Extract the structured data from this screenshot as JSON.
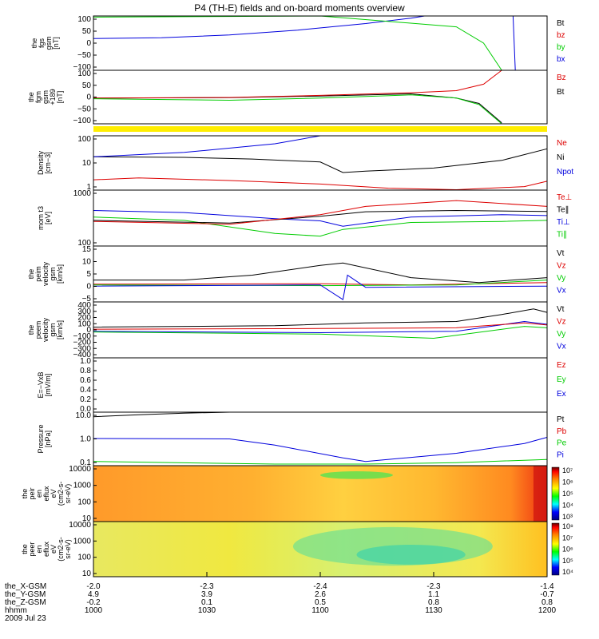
{
  "title": "P4 (TH-E) fields and on-board moments overview",
  "time": {
    "date_label": "2009 Jul 23",
    "row_labels": [
      "the_X-GSM",
      "the_Y-GSM",
      "the_Z-GSM",
      "hhmm"
    ],
    "ticks": [
      {
        "hhmm": "1000",
        "x": "-2.0",
        "y": "4.9",
        "z": "-0.2"
      },
      {
        "hhmm": "1030",
        "x": "-2.3",
        "y": "3.9",
        "z": "0.1"
      },
      {
        "hhmm": "1100",
        "x": "-2.4",
        "y": "2.6",
        "z": "0.5"
      },
      {
        "hhmm": "1130",
        "x": "-2.3",
        "y": "1.1",
        "z": "0.8"
      },
      {
        "hhmm": "1200",
        "x": "-1.4",
        "y": "-0.7",
        "z": "0.8"
      }
    ]
  },
  "colors": {
    "black": "#000000",
    "red": "#dd0000",
    "green": "#00cc00",
    "blue": "#0000dd",
    "flag": "#ffee00"
  },
  "chart_data": [
    {
      "type": "line",
      "id": "fgs",
      "ylabel": [
        "the",
        "fgs",
        "gsm",
        "[nT]"
      ],
      "yticks": [
        "100",
        "50",
        "0",
        "−50",
        "−100"
      ],
      "ylim": [
        -100,
        100
      ],
      "legend": [
        {
          "name": "Bt",
          "color": "black"
        },
        {
          "name": "bz",
          "color": "red"
        },
        {
          "name": "by",
          "color": "green"
        },
        {
          "name": "bx",
          "color": "blue"
        }
      ],
      "series": [
        {
          "name": "bx",
          "color": "blue",
          "points": [
            [
              0,
              17
            ],
            [
              0.15,
              20
            ],
            [
              0.3,
              30
            ],
            [
              0.45,
              48
            ],
            [
              0.6,
              72
            ],
            [
              0.7,
              92
            ],
            [
              0.73,
              100
            ]
          ]
        },
        {
          "name": "by",
          "color": "green",
          "points": [
            [
              0,
              96
            ],
            [
              0.5,
              100
            ],
            [
              0.8,
              60
            ],
            [
              0.86,
              0
            ],
            [
              0.9,
              -100
            ]
          ]
        },
        {
          "name": "bx-late",
          "color": "blue",
          "points": [
            [
              0.925,
              100
            ],
            [
              0.93,
              -100
            ]
          ]
        }
      ]
    },
    {
      "type": "line",
      "id": "fgm",
      "ylabel": [
        "the",
        "fgm",
        "gsm",
        "+189",
        "[nT]"
      ],
      "yticks": [
        "100",
        "50",
        "0",
        "−50",
        "−100"
      ],
      "ylim": [
        -125,
        125
      ],
      "legend": [
        {
          "name": "Bz",
          "color": "red"
        },
        {
          "name": "Bt",
          "color": "black"
        }
      ],
      "series": [
        {
          "name": "black",
          "color": "black",
          "points": [
            [
              0,
              -5
            ],
            [
              0.3,
              -3
            ],
            [
              0.5,
              5
            ],
            [
              0.7,
              15
            ],
            [
              0.8,
              -5
            ],
            [
              0.85,
              -30
            ],
            [
              0.9,
              -120
            ]
          ]
        },
        {
          "name": "red",
          "color": "red",
          "points": [
            [
              0,
              -5
            ],
            [
              0.3,
              -2
            ],
            [
              0.5,
              8
            ],
            [
              0.7,
              20
            ],
            [
              0.8,
              30
            ],
            [
              0.86,
              60
            ],
            [
              0.9,
              125
            ]
          ]
        },
        {
          "name": "green",
          "color": "green",
          "points": [
            [
              0,
              -8
            ],
            [
              0.3,
              -15
            ],
            [
              0.5,
              -5
            ],
            [
              0.7,
              10
            ],
            [
              0.8,
              -5
            ],
            [
              0.85,
              -35
            ],
            [
              0.9,
              -125
            ]
          ]
        }
      ]
    },
    {
      "type": "line",
      "id": "density",
      "scale": "log",
      "ylabel": [
        "Density",
        "[cm−3]"
      ],
      "yticks": [
        "100",
        "10",
        "1"
      ],
      "ylim": [
        0.4,
        200
      ],
      "legend": [
        {
          "name": "Ne",
          "color": "red"
        },
        {
          "name": "Ni",
          "color": "black"
        },
        {
          "name": "Npot",
          "color": "blue"
        }
      ],
      "series": [
        {
          "name": "Ni",
          "color": "black",
          "points": [
            [
              0,
              18
            ],
            [
              0.2,
              17
            ],
            [
              0.35,
              14
            ],
            [
              0.5,
              10
            ],
            [
              0.55,
              3
            ],
            [
              0.6,
              3.5
            ],
            [
              0.75,
              5
            ],
            [
              0.9,
              12
            ],
            [
              1,
              45
            ]
          ]
        },
        {
          "name": "Ne",
          "color": "red",
          "points": [
            [
              0,
              1.3
            ],
            [
              0.1,
              1.6
            ],
            [
              0.3,
              1.2
            ],
            [
              0.5,
              0.8
            ],
            [
              0.65,
              0.5
            ],
            [
              0.8,
              0.42
            ],
            [
              0.95,
              0.6
            ],
            [
              1,
              1.1
            ]
          ]
        },
        {
          "name": "Npot",
          "color": "blue",
          "points": [
            [
              0,
              18
            ],
            [
              0.2,
              30
            ],
            [
              0.4,
              80
            ],
            [
              0.5,
              200
            ]
          ]
        }
      ]
    },
    {
      "type": "line",
      "id": "mom_t",
      "scale": "log",
      "ylabel": [
        "mom t3",
        "[eV]"
      ],
      "yticks": [
        "1000",
        "100"
      ],
      "ylim": [
        50,
        2500
      ],
      "legend": [
        {
          "name": "Te⊥",
          "color": "red"
        },
        {
          "name": "Te∥",
          "color": "black"
        },
        {
          "name": "Ti⊥",
          "color": "blue"
        },
        {
          "name": "Ti∥",
          "color": "green"
        }
      ],
      "series": [
        {
          "name": "Ti⊥",
          "color": "blue",
          "points": [
            [
              0,
              600
            ],
            [
              0.2,
              520
            ],
            [
              0.4,
              340
            ],
            [
              0.5,
              290
            ],
            [
              0.55,
              200
            ],
            [
              0.7,
              380
            ],
            [
              0.9,
              450
            ],
            [
              1,
              420
            ]
          ]
        },
        {
          "name": "Ti∥",
          "color": "green",
          "points": [
            [
              0,
              380
            ],
            [
              0.2,
              300
            ],
            [
              0.4,
              120
            ],
            [
              0.5,
              100
            ],
            [
              0.55,
              160
            ],
            [
              0.7,
              260
            ],
            [
              0.9,
              280
            ],
            [
              1,
              300
            ]
          ]
        },
        {
          "name": "Te∥",
          "color": "black",
          "points": [
            [
              0,
              300
            ],
            [
              0.3,
              250
            ],
            [
              0.5,
              400
            ],
            [
              0.6,
              550
            ],
            [
              0.8,
              600
            ],
            [
              1,
              560
            ]
          ]
        },
        {
          "name": "Te⊥",
          "color": "red",
          "points": [
            [
              0,
              280
            ],
            [
              0.3,
              230
            ],
            [
              0.5,
              450
            ],
            [
              0.6,
              800
            ],
            [
              0.8,
              1200
            ],
            [
              1,
              800
            ]
          ]
        }
      ]
    },
    {
      "type": "line",
      "id": "peim_v",
      "ylabel": [
        "the",
        "peim",
        "velocity",
        "gsm",
        "[km/s]"
      ],
      "yticks": [
        "15",
        "10",
        "5",
        "0",
        "−5"
      ],
      "ylim": [
        -7,
        16
      ],
      "legend": [
        {
          "name": "Vt",
          "color": "black"
        },
        {
          "name": "Vz",
          "color": "red"
        },
        {
          "name": "Vy",
          "color": "green"
        },
        {
          "name": "Vx",
          "color": "blue"
        }
      ],
      "series": [
        {
          "name": "Vt",
          "color": "black",
          "points": [
            [
              0,
              2
            ],
            [
              0.2,
              2
            ],
            [
              0.35,
              4
            ],
            [
              0.5,
              8
            ],
            [
              0.55,
              9
            ],
            [
              0.7,
              3
            ],
            [
              0.85,
              1
            ],
            [
              1,
              3
            ]
          ]
        },
        {
          "name": "Vz",
          "color": "red",
          "points": [
            [
              0,
              0.3
            ],
            [
              0.5,
              0.5
            ],
            [
              0.7,
              0
            ],
            [
              1,
              1
            ]
          ]
        },
        {
          "name": "Vy",
          "color": "green",
          "points": [
            [
              0,
              0
            ],
            [
              0.5,
              -0.3
            ],
            [
              0.8,
              0
            ],
            [
              1,
              2
            ]
          ]
        },
        {
          "name": "Vx",
          "color": "blue",
          "points": [
            [
              0,
              -0.5
            ],
            [
              0.5,
              0
            ],
            [
              0.55,
              -6
            ],
            [
              0.56,
              4
            ],
            [
              0.6,
              -1
            ],
            [
              1,
              -0.5
            ]
          ]
        }
      ]
    },
    {
      "type": "line",
      "id": "peem_v",
      "ylabel": [
        "the",
        "peem",
        "velocity",
        "gsm",
        "[km/s]"
      ],
      "yticks": [
        "400",
        "300",
        "200",
        "100",
        "0",
        "−100",
        "−200",
        "−300",
        "−400"
      ],
      "ylim": [
        -400,
        400
      ],
      "legend": [
        {
          "name": "Vt",
          "color": "black"
        },
        {
          "name": "Vz",
          "color": "red"
        },
        {
          "name": "Vy",
          "color": "green"
        },
        {
          "name": "Vx",
          "color": "blue"
        }
      ],
      "series": [
        {
          "name": "Vx",
          "color": "blue",
          "points": [
            [
              0,
              -20
            ],
            [
              0.5,
              -40
            ],
            [
              0.8,
              -20
            ],
            [
              0.95,
              120
            ],
            [
              1,
              80
            ]
          ]
        },
        {
          "name": "Vy",
          "color": "green",
          "points": [
            [
              0,
              -30
            ],
            [
              0.5,
              -60
            ],
            [
              0.75,
              -120
            ],
            [
              0.95,
              50
            ],
            [
              1,
              30
            ]
          ]
        },
        {
          "name": "Vz",
          "color": "red",
          "points": [
            [
              0,
              10
            ],
            [
              0.5,
              20
            ],
            [
              0.8,
              30
            ],
            [
              0.95,
              100
            ],
            [
              1,
              70
            ]
          ]
        },
        {
          "name": "Vt",
          "color": "black",
          "points": [
            [
              0,
              40
            ],
            [
              0.4,
              60
            ],
            [
              0.6,
              100
            ],
            [
              0.8,
              120
            ],
            [
              0.9,
              220
            ],
            [
              0.97,
              300
            ],
            [
              1,
              250
            ]
          ]
        }
      ]
    },
    {
      "type": "line",
      "id": "efield",
      "ylabel": [
        "E=−VxB",
        "[mV/m]"
      ],
      "yticks": [
        "1.0",
        "0.8",
        "0.6",
        "0.4",
        "0.2",
        "0.0"
      ],
      "ylim": [
        0,
        1
      ],
      "legend": [
        {
          "name": "Ez",
          "color": "red"
        },
        {
          "name": "Ey",
          "color": "green"
        },
        {
          "name": "Ex",
          "color": "blue"
        }
      ],
      "series": []
    },
    {
      "type": "line",
      "id": "pressure",
      "scale": "log",
      "ylabel": [
        "Pressure",
        "[nPa]"
      ],
      "yticks": [
        "10.0",
        "1.0",
        "0.1"
      ],
      "ylim": [
        0.05,
        20
      ],
      "legend": [
        {
          "name": "Pt",
          "color": "black"
        },
        {
          "name": "Pb",
          "color": "red"
        },
        {
          "name": "Pe",
          "color": "green"
        },
        {
          "name": "Pi",
          "color": "blue"
        }
      ],
      "series": [
        {
          "name": "Pt",
          "color": "black",
          "points": [
            [
              0,
              12
            ],
            [
              0.1,
              15
            ],
            [
              0.2,
              18
            ],
            [
              0.3,
              21
            ]
          ]
        },
        {
          "name": "Pi",
          "color": "blue",
          "points": [
            [
              0,
              1.05
            ],
            [
              0.3,
              1.0
            ],
            [
              0.4,
              0.5
            ],
            [
              0.55,
              0.12
            ],
            [
              0.6,
              0.08
            ],
            [
              0.8,
              0.2
            ],
            [
              0.95,
              0.6
            ],
            [
              1,
              1.2
            ]
          ]
        },
        {
          "name": "Pe",
          "color": "green",
          "points": [
            [
              0,
              0.08
            ],
            [
              0.4,
              0.06
            ],
            [
              0.6,
              0.06
            ],
            [
              0.8,
              0.07
            ],
            [
              1,
              0.1
            ]
          ]
        }
      ]
    },
    {
      "type": "heatmap",
      "id": "peir",
      "ylabel": [
        "the",
        "peir",
        "en",
        "eflux",
        "eV",
        "(cm2-s-",
        "sr-eV)"
      ],
      "yticks": [
        "10000",
        "1000",
        "100",
        "10"
      ],
      "colorbar_ticks": [
        "10⁷",
        "10⁶",
        "10⁵",
        "10⁴",
        "10³"
      ]
    },
    {
      "type": "heatmap",
      "id": "peer",
      "ylabel": [
        "the",
        "peer",
        "en",
        "eflux",
        "eV",
        "(cm2-s-",
        "sr-eV)"
      ],
      "yticks": [
        "10000",
        "1000",
        "100",
        "10"
      ],
      "colorbar_ticks": [
        "10⁸",
        "10⁷",
        "10⁶",
        "10⁵",
        "10⁴"
      ]
    }
  ]
}
